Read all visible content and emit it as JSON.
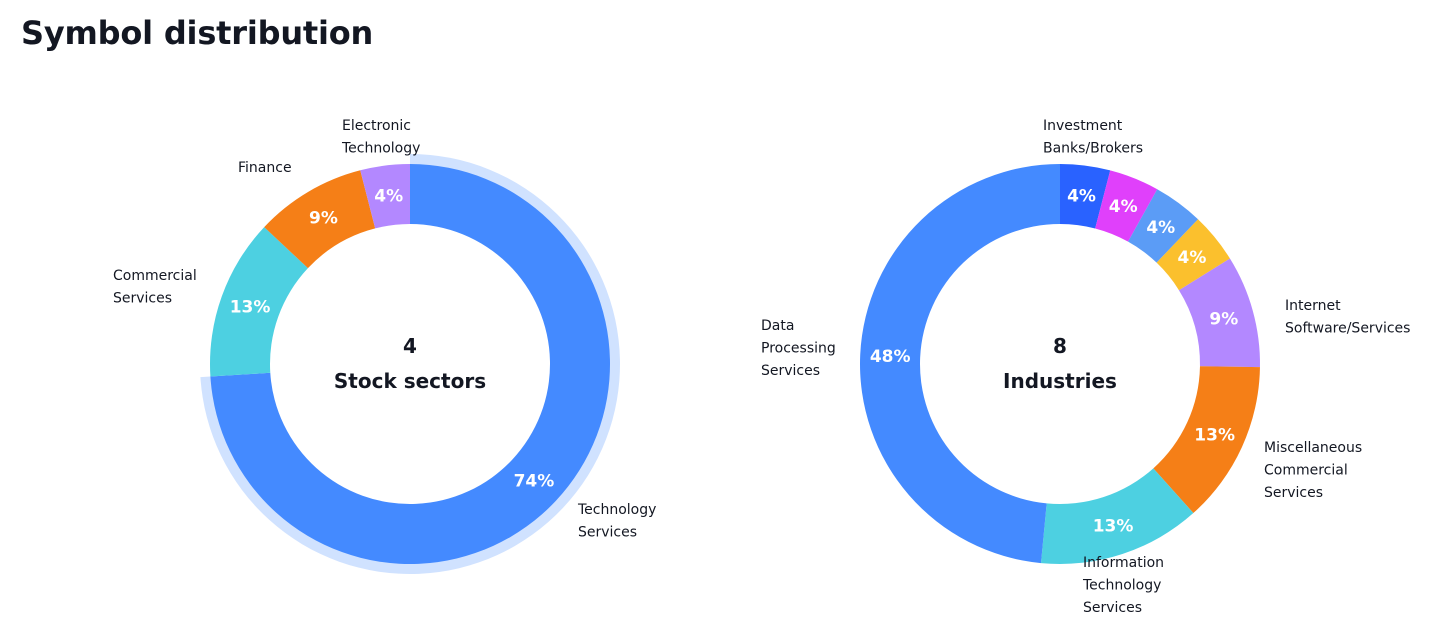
{
  "page": {
    "title": "Symbol distribution"
  },
  "chart_data": [
    {
      "type": "pie",
      "center": {
        "count": "4",
        "label": "Stock sectors"
      },
      "slices": [
        {
          "label": "Technology Services",
          "label_lines": [
            "Technology",
            "Services"
          ],
          "value": 74,
          "display": "74%",
          "color": "#448aff",
          "highlighted": true
        },
        {
          "label": "Commercial Services",
          "label_lines": [
            "Commercial",
            "Services"
          ],
          "value": 13,
          "display": "13%",
          "color": "#4dd0e1"
        },
        {
          "label": "Finance",
          "label_lines": [
            "Finance"
          ],
          "value": 9,
          "display": "9%",
          "color": "#f57f17"
        },
        {
          "label": "Electronic Technology",
          "label_lines": [
            "Electronic",
            "Technology"
          ],
          "value": 4,
          "display": "4%",
          "color": "#b388ff"
        }
      ]
    },
    {
      "type": "pie",
      "center": {
        "count": "8",
        "label": "Industries"
      },
      "slices": [
        {
          "label": "Investment Banks/Brokers",
          "label_lines": [
            "Investment",
            "Banks/Brokers"
          ],
          "value": 4,
          "display": "4%",
          "color": "#2962ff"
        },
        {
          "label": "",
          "label_lines": [],
          "value": 4,
          "display": "4%",
          "color": "#e040fb"
        },
        {
          "label": "",
          "label_lines": [],
          "value": 4,
          "display": "4%",
          "color": "#5b9cf6"
        },
        {
          "label": "",
          "label_lines": [],
          "value": 4,
          "display": "4%",
          "color": "#fbc02d"
        },
        {
          "label": "Internet Software/Services",
          "label_lines": [
            "Internet",
            "Software/Services"
          ],
          "value": 9,
          "display": "9%",
          "color": "#b388ff"
        },
        {
          "label": "Miscellaneous Commercial Services",
          "label_lines": [
            "Miscellaneous",
            "Commercial",
            "Services"
          ],
          "value": 13,
          "display": "13%",
          "color": "#f57f17"
        },
        {
          "label": "Information Technology Services",
          "label_lines": [
            "Information",
            "Technology",
            "Services"
          ],
          "value": 13,
          "display": "13%",
          "color": "#4dd0e1"
        },
        {
          "label": "Data Processing Services",
          "label_lines": [
            "Data",
            "Processing",
            "Services"
          ],
          "value": 48,
          "display": "48%",
          "color": "#448aff"
        }
      ]
    }
  ]
}
